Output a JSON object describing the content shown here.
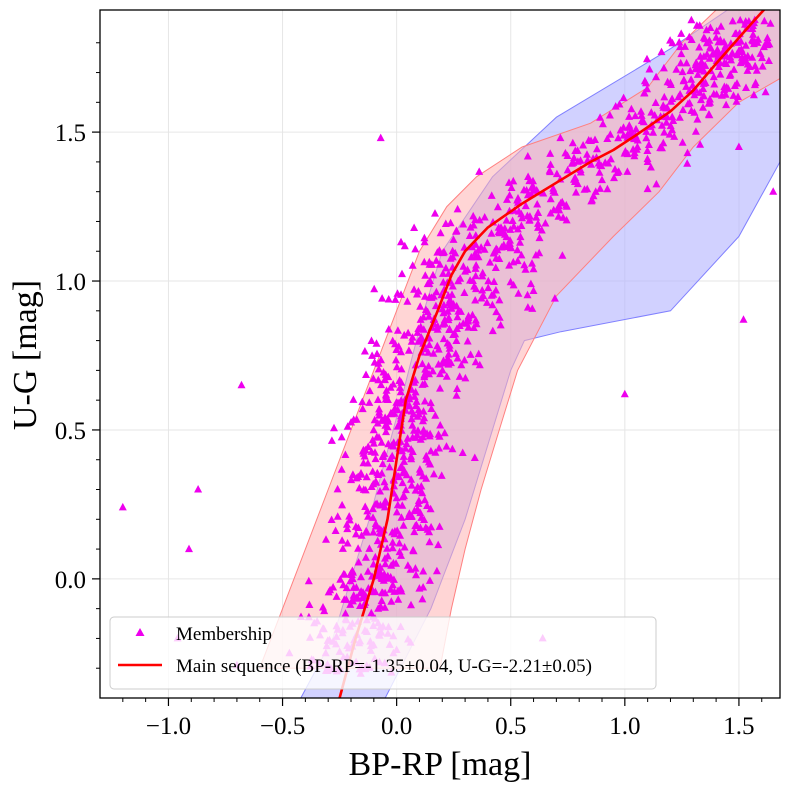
{
  "chart_data": {
    "type": "scatter",
    "xlabel": "BP-RP [mag]",
    "ylabel": "U-G [mag]",
    "xlim": [
      -1.3,
      1.68
    ],
    "ylim": [
      1.91,
      -0.4
    ],
    "y_inverted": true,
    "grid": true,
    "legend_position": "bottom-left",
    "x_ticks": [
      -1.0,
      -0.5,
      0.0,
      0.5,
      1.0,
      1.5
    ],
    "x_tick_labels": [
      "−1.0",
      "−0.5",
      "0.0",
      "0.5",
      "1.0",
      "1.5"
    ],
    "y_ticks": [
      0.0,
      0.5,
      1.0,
      1.5
    ],
    "y_tick_labels": [
      "0.0",
      "0.5",
      "1.0",
      "1.5"
    ],
    "colors": {
      "membership": "#ee00ee",
      "main_sequence": "#ff0000",
      "red_band_fill": "#ffb3b3",
      "red_band_edge": "#ff8080",
      "blue_band_fill": "#b3b3ff",
      "blue_band_edge": "#8080ff",
      "grid": "#e6e6e6"
    },
    "series": [
      {
        "name": "Membership",
        "kind": "scatter",
        "marker": "triangle",
        "generated": true,
        "count": 1200,
        "points": [
          [
            -1.2,
            0.24
          ],
          [
            -0.96,
            -0.2
          ],
          [
            -0.91,
            0.1
          ],
          [
            -0.87,
            0.3
          ],
          [
            -0.7,
            -0.29
          ],
          [
            -0.68,
            0.65
          ],
          [
            -0.47,
            -0.25
          ],
          [
            -0.07,
            1.48
          ],
          [
            0.64,
            -0.2
          ],
          [
            1.0,
            0.62
          ],
          [
            1.52,
            0.87
          ],
          [
            1.5,
            1.45
          ],
          [
            1.65,
            1.3
          ]
        ]
      },
      {
        "name": "Main sequence (BP-RP=-1.35±0.04, U-G=-2.21±0.05)",
        "kind": "line",
        "x": [
          -0.25,
          -0.18,
          -0.1,
          -0.04,
          0.0,
          0.04,
          0.1,
          0.18,
          0.24,
          0.3,
          0.4,
          0.55,
          0.7,
          0.85,
          0.95,
          1.05,
          1.2,
          1.3,
          1.4,
          1.55,
          1.68
        ],
        "y": [
          -0.4,
          -0.2,
          0.0,
          0.2,
          0.4,
          0.6,
          0.75,
          0.9,
          1.02,
          1.1,
          1.18,
          1.26,
          1.33,
          1.4,
          1.44,
          1.49,
          1.57,
          1.64,
          1.73,
          1.86,
          1.97
        ]
      }
    ],
    "bands": [
      {
        "kind": "blue",
        "top_y": -0.4,
        "upper_x": [
          -0.42,
          -0.28,
          -0.2,
          -0.12,
          -0.05,
          0.02,
          0.12,
          0.2,
          0.42,
          0.7,
          1.2,
          1.45,
          1.68
        ],
        "upper_y": [
          -0.4,
          -0.2,
          0.0,
          0.2,
          0.4,
          0.6,
          0.9,
          1.1,
          1.35,
          1.55,
          1.78,
          1.91,
          1.91
        ],
        "lower_x": [
          -0.05,
          0.15,
          0.3,
          0.4,
          0.5,
          0.56,
          0.72,
          1.2,
          1.5,
          1.68
        ],
        "lower_y": [
          -0.4,
          -0.1,
          0.2,
          0.45,
          0.7,
          0.8,
          0.83,
          0.9,
          1.15,
          1.4
        ]
      },
      {
        "kind": "red",
        "top_y": -0.3,
        "left_x": [
          -0.6,
          -0.5,
          -0.4,
          -0.3,
          -0.2,
          -0.1,
          0.0,
          0.1,
          0.22,
          0.35,
          0.55,
          0.85,
          1.1,
          1.25,
          1.4
        ],
        "left_y": [
          -0.3,
          -0.1,
          0.1,
          0.3,
          0.5,
          0.7,
          0.9,
          1.1,
          1.25,
          1.35,
          1.45,
          1.53,
          1.65,
          1.8,
          1.91
        ],
        "right_x": [
          0.19,
          0.24,
          0.3,
          0.37,
          0.45,
          0.53,
          0.7,
          0.95,
          1.15,
          1.3,
          1.5,
          1.68
        ],
        "right_y": [
          -0.3,
          -0.1,
          0.1,
          0.3,
          0.5,
          0.7,
          0.95,
          1.15,
          1.3,
          1.45,
          1.6,
          1.68
        ]
      }
    ]
  }
}
